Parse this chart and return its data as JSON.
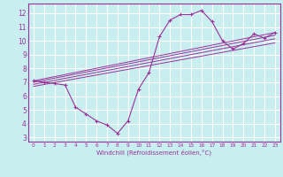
{
  "xlabel": "Windchill (Refroidissement éolien,°C)",
  "bg_color": "#c8eef0",
  "line_color": "#993399",
  "grid_color": "#ffffff",
  "xlim": [
    -0.5,
    23.5
  ],
  "ylim": [
    2.7,
    12.7
  ],
  "yticks": [
    3,
    4,
    5,
    6,
    7,
    8,
    9,
    10,
    11,
    12
  ],
  "xticks": [
    0,
    1,
    2,
    3,
    4,
    5,
    6,
    7,
    8,
    9,
    10,
    11,
    12,
    13,
    14,
    15,
    16,
    17,
    18,
    19,
    20,
    21,
    22,
    23
  ],
  "curve1_x": [
    0,
    1,
    2,
    3,
    4,
    5,
    6,
    7,
    8,
    9,
    10,
    11,
    12,
    13,
    14,
    15,
    16,
    17,
    18,
    19,
    20,
    21,
    22,
    23
  ],
  "curve1_y": [
    7.1,
    7.0,
    6.9,
    6.8,
    5.2,
    4.7,
    4.2,
    3.9,
    3.3,
    4.2,
    6.5,
    7.7,
    10.3,
    11.5,
    11.9,
    11.9,
    12.2,
    11.4,
    10.0,
    9.4,
    9.8,
    10.5,
    10.2,
    10.6
  ],
  "line1_x": [
    0,
    23
  ],
  "line1_y": [
    7.1,
    10.6
  ],
  "line2_x": [
    0,
    23
  ],
  "line2_y": [
    7.0,
    10.4
  ],
  "line3_x": [
    0,
    23
  ],
  "line3_y": [
    6.85,
    10.15
  ],
  "line4_x": [
    0,
    23
  ],
  "line4_y": [
    6.7,
    9.85
  ]
}
